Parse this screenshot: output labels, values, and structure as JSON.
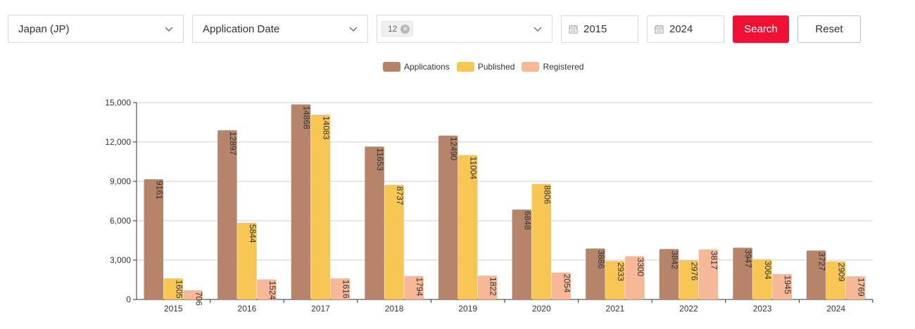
{
  "filters": {
    "country": "Japan (JP)",
    "date_type": "Application Date",
    "selected_tag": "12",
    "start_year": "2015",
    "end_year": "2024",
    "search_label": "Search",
    "reset_label": "Reset"
  },
  "colors": {
    "applications": "#b5846a",
    "published": "#f8c655",
    "registered": "#f6b897",
    "search_button": "#ee1133"
  },
  "chart_data": {
    "type": "bar",
    "categories": [
      "2015",
      "2016",
      "2017",
      "2018",
      "2019",
      "2020",
      "2021",
      "2022",
      "2023",
      "2024"
    ],
    "series": [
      {
        "name": "Applications",
        "values": [
          9161,
          12897,
          14868,
          11653,
          12490,
          6848,
          3886,
          3842,
          3947,
          3727
        ]
      },
      {
        "name": "Published",
        "values": [
          1605,
          5844,
          14083,
          8737,
          11004,
          8806,
          2933,
          2976,
          3064,
          2909
        ]
      },
      {
        "name": "Registered",
        "values": [
          706,
          1524,
          1616,
          1794,
          1822,
          2054,
          3300,
          3817,
          1945,
          1769
        ]
      }
    ],
    "y_ticks": [
      "0",
      "3,000",
      "6,000",
      "9,000",
      "12,000",
      "15,000"
    ],
    "ylim": [
      0,
      15000
    ],
    "legend_position": "top-center",
    "title": "",
    "xlabel": "",
    "ylabel": ""
  }
}
